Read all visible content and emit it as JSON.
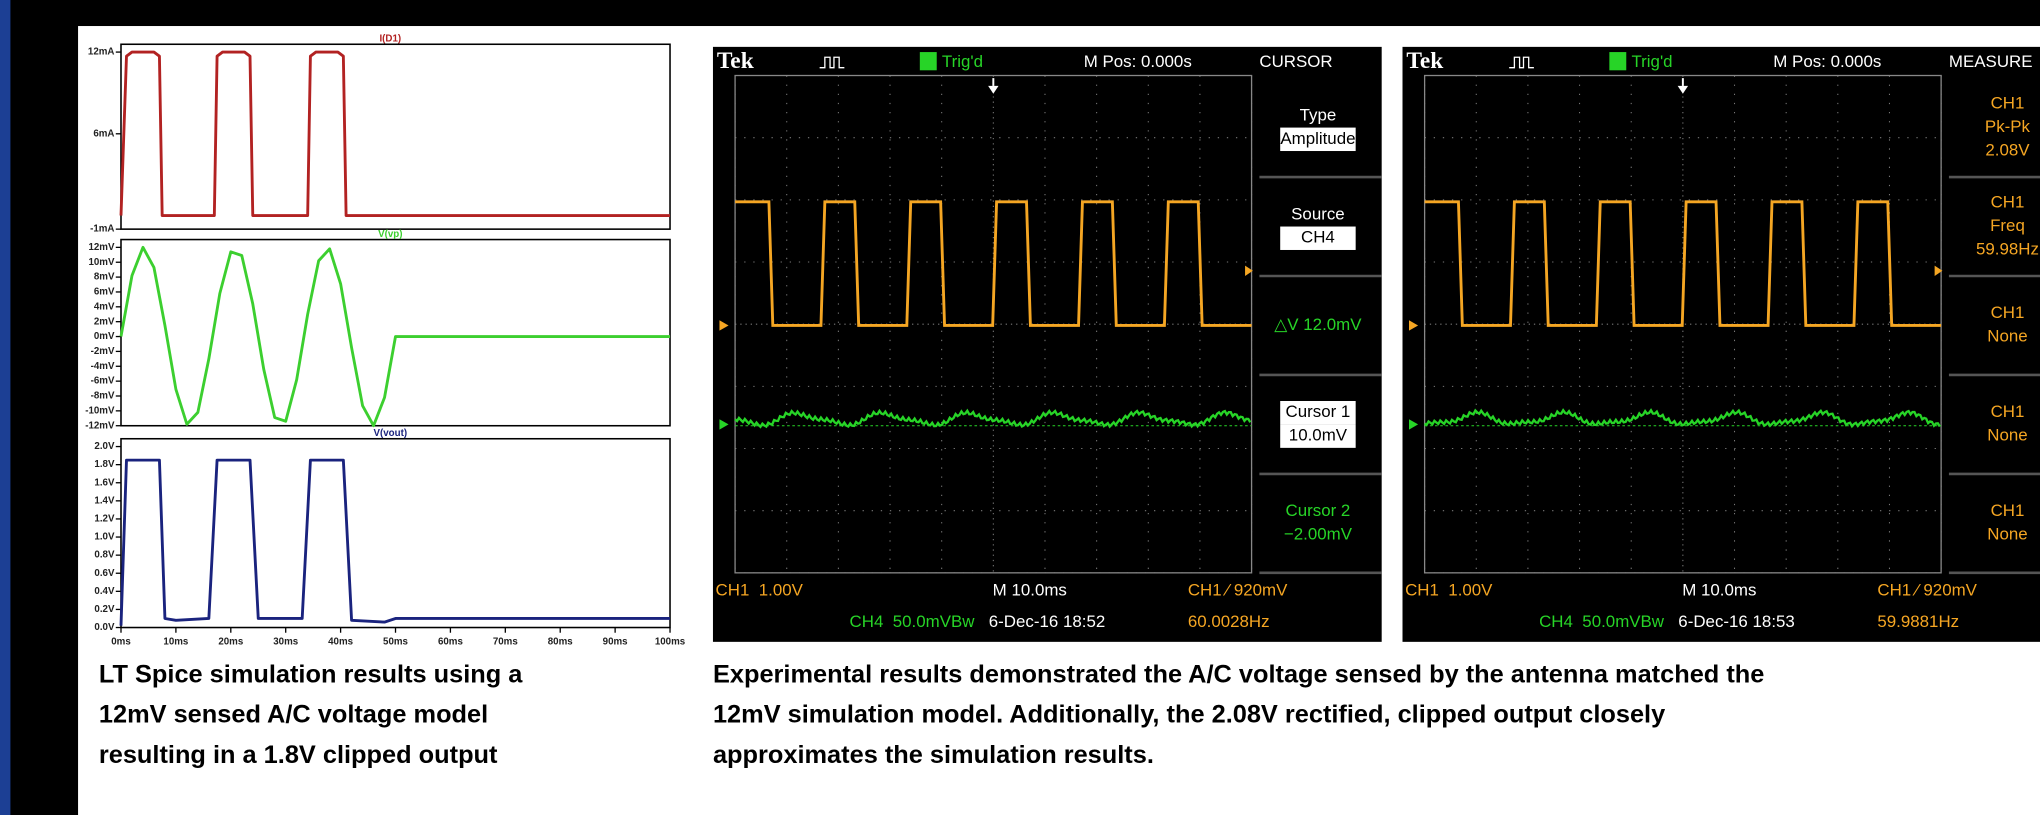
{
  "chart_data": [
    {
      "type": "line",
      "x": [
        0,
        1,
        2,
        6,
        7,
        7.5,
        17,
        17.5,
        18.5,
        22.5,
        23.5,
        24,
        34,
        34.5,
        35.5,
        39.5,
        40.5,
        41,
        100
      ],
      "series": [
        {
          "name": "I(D1)",
          "color": "#b22222",
          "values": [
            0,
            11.7,
            12,
            12,
            11.7,
            0,
            0,
            11.7,
            12,
            12,
            11.7,
            0,
            0,
            11.7,
            12,
            12,
            11.7,
            0,
            0
          ]
        }
      ],
      "xlim": [
        0,
        100
      ],
      "ylim": [
        -1,
        12
      ],
      "yticks": [
        {
          "value": 12,
          "label": "12mA"
        },
        {
          "value": 6,
          "label": "6mA"
        },
        {
          "value": -1,
          "label": "-1mA"
        }
      ]
    },
    {
      "type": "line",
      "x": [
        0,
        2,
        4,
        6,
        8,
        10,
        12,
        14,
        16,
        18,
        20,
        22,
        24,
        26,
        28,
        30,
        32,
        34,
        36,
        38,
        40,
        42,
        44,
        46,
        48,
        50,
        100
      ],
      "series": [
        {
          "name": "V(vp)",
          "color": "#3ccf2f",
          "values": [
            0,
            8.2,
            12,
            9.3,
            1.5,
            -7.1,
            -11.8,
            -10.2,
            -3,
            5.8,
            11.4,
            10.9,
            4.4,
            -4.4,
            -10.9,
            -11.4,
            -5.8,
            3,
            10.2,
            11.8,
            7.1,
            -1.5,
            -9.3,
            -12,
            -8.2,
            0,
            0
          ]
        }
      ],
      "xlim": [
        0,
        100
      ],
      "ylim": [
        -12,
        12
      ],
      "yticks": [
        {
          "value": 12,
          "label": "12mV"
        },
        {
          "value": 10,
          "label": "10mV"
        },
        {
          "value": 8,
          "label": "8mV"
        },
        {
          "value": 6,
          "label": "6mV"
        },
        {
          "value": 4,
          "label": "4mV"
        },
        {
          "value": 2,
          "label": "2mV"
        },
        {
          "value": 0,
          "label": "0mV"
        },
        {
          "value": -2,
          "label": "-2mV"
        },
        {
          "value": -4,
          "label": "-4mV"
        },
        {
          "value": -6,
          "label": "-6mV"
        },
        {
          "value": -8,
          "label": "-8mV"
        },
        {
          "value": -10,
          "label": "-10mV"
        },
        {
          "value": -12,
          "label": "-12mV"
        }
      ]
    },
    {
      "type": "line",
      "x": [
        0,
        1,
        7,
        8,
        10,
        16,
        17.5,
        23.5,
        25,
        33,
        34.5,
        40.5,
        42,
        48,
        50,
        100
      ],
      "series": [
        {
          "name": "V(vout)",
          "color": "#1a237e",
          "values": [
            0.02,
            1.85,
            1.85,
            0.1,
            0.08,
            0.1,
            1.85,
            1.85,
            0.1,
            0.1,
            1.85,
            1.85,
            0.08,
            0.06,
            0.1,
            0.1
          ]
        }
      ],
      "xlim": [
        0,
        100
      ],
      "ylim": [
        0,
        2
      ],
      "yticks": [
        {
          "value": 0,
          "label": "0.0V"
        },
        {
          "value": 0.2,
          "label": "0.2V"
        },
        {
          "value": 0.4,
          "label": "0.4V"
        },
        {
          "value": 0.6,
          "label": "0.6V"
        },
        {
          "value": 0.8,
          "label": "0.8V"
        },
        {
          "value": 1,
          "label": "1.0V"
        },
        {
          "value": 1.2,
          "label": "1.2V"
        },
        {
          "value": 1.4,
          "label": "1.4V"
        },
        {
          "value": 1.6,
          "label": "1.6V"
        },
        {
          "value": 1.8,
          "label": "1.8V"
        },
        {
          "value": 2,
          "label": "2.0V"
        }
      ],
      "xticks": [
        {
          "value": 0,
          "label": "0ms"
        },
        {
          "value": 10,
          "label": "10ms"
        },
        {
          "value": 20,
          "label": "20ms"
        },
        {
          "value": 30,
          "label": "30ms"
        },
        {
          "value": 40,
          "label": "40ms"
        },
        {
          "value": 50,
          "label": "50ms"
        },
        {
          "value": 60,
          "label": "60ms"
        },
        {
          "value": 70,
          "label": "70ms"
        },
        {
          "value": 80,
          "label": "80ms"
        },
        {
          "value": 90,
          "label": "90ms"
        },
        {
          "value": 100,
          "label": "100ms"
        }
      ]
    }
  ],
  "scopes": [
    {
      "brand": "Tek",
      "trigger": "Trig'd",
      "position": "M Pos: 0.000s",
      "menu_title": "CURSOR",
      "menu": [
        [
          "Type",
          "Amplitude"
        ],
        [
          "Source",
          "CH4"
        ],
        [
          "△V 12.0mV"
        ],
        [
          "Cursor 1",
          "10.0mV"
        ],
        [
          "Cursor 2",
          "−2.00mV"
        ]
      ],
      "ch1_scale": "CH1  1.00V",
      "timebase": "M 10.0ms",
      "trigger_level": "CH1 ⁄ 920mV",
      "ch4_scale": "CH4  50.0mVBw",
      "datetime": "6-Dec-16 18:52",
      "frequency": "60.0028Hz"
    },
    {
      "brand": "Tek",
      "trigger": "Trig'd",
      "position": "M Pos: 0.000s",
      "menu_title": "MEASURE",
      "menu": [
        [
          "CH1",
          "Pk-Pk",
          "2.08V"
        ],
        [
          "CH1",
          "Freq",
          "59.98Hz"
        ],
        [
          "CH1",
          "None"
        ],
        [
          "CH1",
          "None"
        ],
        [
          "CH1",
          "None"
        ]
      ],
      "ch1_scale": "CH1  1.00V",
      "timebase": "M 10.0ms",
      "trigger_level": "CH1 ⁄ 920mV",
      "ch4_scale": "CH4  50.0mVBw",
      "datetime": "6-Dec-16 18:53",
      "frequency": "59.9881Hz"
    }
  ],
  "captions": {
    "simulation": [
      "LT Spice simulation results using a",
      "12mV sensed A/C voltage model",
      "resulting in a 1.8V clipped output"
    ],
    "experiment": [
      "Experimental results demonstrated the A/C voltage sensed by the antenna matched the",
      "12mV simulation model. Additionally, the 2.08V rectified, clipped output closely",
      "approximates the simulation results."
    ]
  }
}
